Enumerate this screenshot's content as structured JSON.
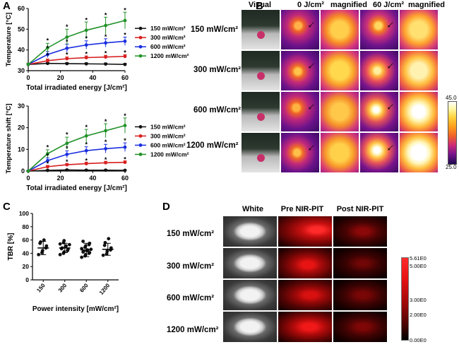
{
  "panel_labels": {
    "a": "A",
    "b": "B",
    "c": "C",
    "d": "D"
  },
  "colors": {
    "s150": "#111111",
    "s300": "#d81e1e",
    "s600": "#1a2ee0",
    "s1200": "#23922a"
  },
  "chart_data": [
    {
      "id": "A-top",
      "type": "line",
      "ylabel": "Temperature [°C]",
      "xlabel": "Total irradiated energy [J/cm²]",
      "xlim": [
        0,
        60
      ],
      "ylim": [
        30,
        60
      ],
      "xticks": [
        "0",
        "20",
        "40",
        "60"
      ],
      "yticks": [
        "30",
        "40",
        "50",
        "60"
      ],
      "x": [
        0,
        12,
        24,
        36,
        48,
        60
      ],
      "series": [
        {
          "name": "150 mW/cm²",
          "color": "#111111",
          "values": [
            33,
            33.5,
            33.4,
            33.3,
            33.2,
            33.0
          ],
          "err": [
            0.5,
            0.5,
            0.5,
            0.5,
            0.5,
            0.5
          ]
        },
        {
          "name": "300 mW/cm²",
          "color": "#d81e1e",
          "values": [
            33,
            34.8,
            35.8,
            36.3,
            36.6,
            36.9
          ],
          "err": [
            0.6,
            0.8,
            0.8,
            0.8,
            0.8,
            0.8
          ]
        },
        {
          "name": "600 mW/cm²",
          "color": "#1a2ee0",
          "values": [
            33,
            37.8,
            40.8,
            42.4,
            43.4,
            44.2
          ],
          "err": [
            0.6,
            1.5,
            2.0,
            2.0,
            2.0,
            2.0
          ]
        },
        {
          "name": "1200 mW/cm²",
          "color": "#23922a",
          "values": [
            33,
            41.0,
            46.2,
            49.5,
            51.8,
            54.2
          ],
          "err": [
            0.6,
            2.2,
            3.8,
            4.0,
            4.0,
            4.0
          ]
        }
      ],
      "annotations": [
        {
          "x": 12,
          "y": 44.8,
          "text": "*"
        },
        {
          "x": 12,
          "y": 41.3,
          "text": "*"
        },
        {
          "x": 12,
          "y": 37.6,
          "text": "*"
        },
        {
          "x": 24,
          "y": 51.4,
          "text": "*"
        },
        {
          "x": 24,
          "y": 44.3,
          "text": "*"
        },
        {
          "x": 24,
          "y": 38.0,
          "text": "*"
        },
        {
          "x": 36,
          "y": 54.8,
          "text": "*"
        },
        {
          "x": 36,
          "y": 45.9,
          "text": "*"
        },
        {
          "x": 36,
          "y": 38.4,
          "text": "*"
        },
        {
          "x": 48,
          "y": 57.1,
          "text": "*"
        },
        {
          "x": 48,
          "y": 46.7,
          "text": "*"
        },
        {
          "x": 48,
          "y": 38.7,
          "text": "*"
        },
        {
          "x": 60,
          "y": 59.5,
          "text": "*"
        },
        {
          "x": 60,
          "y": 47.6,
          "text": "*"
        },
        {
          "x": 60,
          "y": 39.0,
          "text": "*"
        }
      ]
    },
    {
      "id": "A-bottom",
      "type": "line",
      "ylabel": "Temperature shift [°C]",
      "xlabel": "Total irradiated energy [J/cm²]",
      "xlim": [
        0,
        60
      ],
      "ylim": [
        0,
        30
      ],
      "xticks": [
        "0",
        "20",
        "40",
        "60"
      ],
      "yticks": [
        "0",
        "10",
        "20",
        "30"
      ],
      "x": [
        0,
        12,
        24,
        36,
        48,
        60
      ],
      "series": [
        {
          "name": "150 mW/cm²",
          "color": "#111111",
          "values": [
            0,
            0.3,
            0.5,
            0.4,
            0.4,
            0.3
          ],
          "err": [
            0.3,
            0.3,
            0.3,
            0.3,
            0.3,
            0.3
          ]
        },
        {
          "name": "300 mW/cm²",
          "color": "#d81e1e",
          "values": [
            0,
            2.0,
            2.9,
            3.4,
            3.8,
            4.0
          ],
          "err": [
            0.3,
            0.6,
            0.6,
            0.7,
            0.7,
            0.7
          ]
        },
        {
          "name": "600 mW/cm²",
          "color": "#1a2ee0",
          "values": [
            0,
            4.8,
            7.7,
            9.4,
            10.3,
            11.0
          ],
          "err": [
            0.3,
            1.3,
            1.6,
            1.8,
            2.0,
            2.0
          ]
        },
        {
          "name": "1200 mW/cm²",
          "color": "#23922a",
          "values": [
            0,
            8.0,
            12.8,
            16.2,
            18.6,
            21.0
          ],
          "err": [
            0.3,
            1.8,
            2.8,
            3.0,
            3.2,
            3.5
          ]
        }
      ],
      "annotations": [
        {
          "x": 12,
          "y": 11.2,
          "text": "*"
        },
        {
          "x": 12,
          "y": 7.4,
          "text": "*"
        },
        {
          "x": 12,
          "y": 3.7,
          "text": "*"
        },
        {
          "x": 24,
          "y": 17.1,
          "text": "*"
        },
        {
          "x": 24,
          "y": 10.8,
          "text": "*"
        },
        {
          "x": 24,
          "y": 4.5,
          "text": "*"
        },
        {
          "x": 36,
          "y": 20.5,
          "text": "*"
        },
        {
          "x": 36,
          "y": 12.6,
          "text": "*"
        },
        {
          "x": 36,
          "y": 5.1,
          "text": "*"
        },
        {
          "x": 48,
          "y": 23.1,
          "text": "*"
        },
        {
          "x": 48,
          "y": 13.7,
          "text": "*"
        },
        {
          "x": 48,
          "y": 5.5,
          "text": "*"
        },
        {
          "x": 60,
          "y": 25.7,
          "text": "*"
        },
        {
          "x": 60,
          "y": 14.4,
          "text": "*"
        },
        {
          "x": 60,
          "y": 5.7,
          "text": "*"
        }
      ]
    },
    {
      "id": "C",
      "type": "scatter",
      "ylabel": "TBR [%]",
      "xlabel": "Power intensity [mW/cm²]",
      "ylim": [
        0,
        100
      ],
      "yticks": [
        "0",
        "20",
        "40",
        "60",
        "80",
        "100"
      ],
      "categories": [
        "150",
        "300",
        "600",
        "1200"
      ],
      "series": [
        {
          "name": "150",
          "points": [
            38,
            41,
            44,
            48,
            51,
            55,
            57,
            60
          ],
          "mean": 48,
          "sd": 10
        },
        {
          "name": "300",
          "points": [
            38,
            40,
            42,
            44,
            46,
            47,
            48,
            50,
            51,
            53,
            54,
            56,
            59
          ],
          "mean": 48,
          "sd": 7
        },
        {
          "name": "600",
          "points": [
            34,
            36,
            38,
            40,
            41,
            42,
            43,
            44,
            45,
            46,
            47,
            49,
            51,
            53,
            55,
            58
          ],
          "mean": 45,
          "sd": 10
        },
        {
          "name": "1200",
          "points": [
            37,
            39,
            43,
            45,
            48,
            52,
            56,
            62
          ],
          "mean": 46,
          "sd": 9
        }
      ]
    }
  ],
  "panel_b": {
    "headers": [
      "Visual",
      "0 J/cm²",
      "magnified",
      "60 J/cm²",
      "magnified"
    ],
    "rows": [
      "150 mW/cm²",
      "300 mW/cm²",
      "600 mW/cm²",
      "1200 mW/cm²"
    ],
    "scale_max": "45.0",
    "scale_min": "25.0"
  },
  "panel_d": {
    "headers": [
      "White",
      "Pre NIR-PIT",
      "Post NIR-PIT"
    ],
    "rows": [
      "150 mW/cm²",
      "300 mW/cm²",
      "600 mW/cm²",
      "1200 mW/cm²"
    ],
    "scale_labels": [
      "5.61E0",
      "5.00E0",
      "3.00E0",
      "2.00E0",
      "0.00E0"
    ]
  }
}
